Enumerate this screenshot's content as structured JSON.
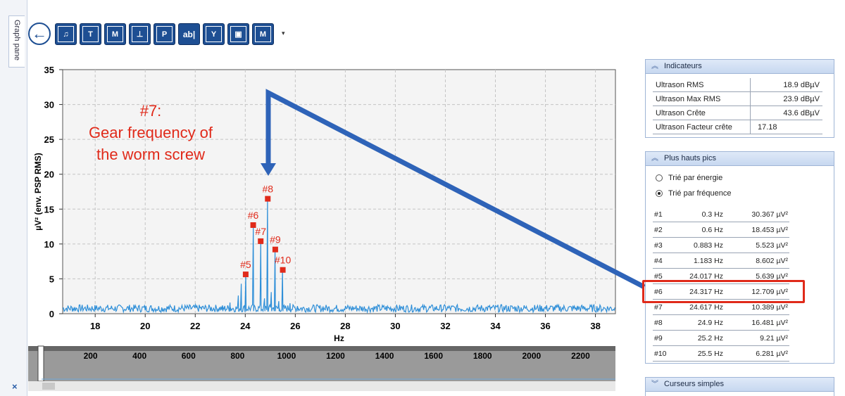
{
  "sidebar": {
    "graph_pane_tab": "Graph pane",
    "close_symbol": "×"
  },
  "toolbar": {
    "buttons": [
      {
        "name": "back-button",
        "label": "←"
      },
      {
        "name": "export-button",
        "label": "♫"
      },
      {
        "name": "time-cursor-button",
        "label": "T"
      },
      {
        "name": "marker-button",
        "label": "M"
      },
      {
        "name": "harmonic-button",
        "label": "⊥"
      },
      {
        "name": "peak-button",
        "label": "P"
      },
      {
        "name": "text-button",
        "label": "ab|"
      },
      {
        "name": "y-axis-button",
        "label": "Y"
      },
      {
        "name": "save-button",
        "label": "▣"
      },
      {
        "name": "delete-marker-button",
        "label": "M"
      }
    ],
    "dropdown_arrow": "▾"
  },
  "chart_data": {
    "type": "line",
    "ylabel": "µV² (env. PSP RMS)",
    "xlabel": "Hz",
    "xlim": [
      16.7,
      38.8
    ],
    "ylim": [
      0,
      35
    ],
    "xticks": [
      18,
      20,
      22,
      24,
      26,
      28,
      30,
      32,
      34,
      36,
      38
    ],
    "yticks": [
      0,
      5,
      10,
      15,
      20,
      25,
      30,
      35
    ],
    "grid": true,
    "line_color": "#2f8fd8",
    "noise_level": 0.9,
    "peaks": [
      {
        "label": "#5",
        "x": 24.017,
        "y": 5.639
      },
      {
        "label": "#6",
        "x": 24.317,
        "y": 12.709
      },
      {
        "label": "#7",
        "x": 24.617,
        "y": 10.4
      },
      {
        "label": "#8",
        "x": 24.9,
        "y": 16.481
      },
      {
        "label": "#9",
        "x": 25.2,
        "y": 9.21
      },
      {
        "label": "#10",
        "x": 25.5,
        "y": 6.281
      }
    ],
    "minor_peaks": [
      {
        "x": 23.4,
        "y": 1.6
      },
      {
        "x": 23.72,
        "y": 2.6
      },
      {
        "x": 23.85,
        "y": 4.3
      },
      {
        "x": 24.77,
        "y": 2.2
      },
      {
        "x": 25.05,
        "y": 3.1
      },
      {
        "x": 25.35,
        "y": 1.8
      },
      {
        "x": 25.8,
        "y": 1.5
      },
      {
        "x": 26.1,
        "y": 1.1
      },
      {
        "x": 23.1,
        "y": 1.2
      }
    ],
    "annotation_lines": [
      "#7:",
      "Gear frequency of",
      "the worm screw"
    ],
    "annotation_color": "#e02a1a",
    "overview": {
      "xlim": [
        0,
        2400
      ],
      "ticks": [
        200,
        400,
        600,
        800,
        1000,
        1200,
        1400,
        1600,
        1800,
        2000,
        2200
      ]
    }
  },
  "indicators": {
    "title": "Indicateurs",
    "rows": [
      {
        "label": "Ultrason RMS",
        "value": "18.9 dBµV"
      },
      {
        "label": "Ultrason Max RMS",
        "value": "23.9 dBµV"
      },
      {
        "label": "Ultrason Crête",
        "value": "43.6 dBµV"
      },
      {
        "label": "Ultrason Facteur crête",
        "value": "17.18"
      }
    ]
  },
  "peaks_panel": {
    "title": "Plus hauts pics",
    "sort_energy": "Trié par énergie",
    "sort_frequency": "Trié par fréquence",
    "rows": [
      {
        "id": "#1",
        "freq": "0.3 Hz",
        "amp": "30.367 µV²"
      },
      {
        "id": "#2",
        "freq": "0.6 Hz",
        "amp": "18.453 µV²"
      },
      {
        "id": "#3",
        "freq": "0.883 Hz",
        "amp": "5.523 µV²"
      },
      {
        "id": "#4",
        "freq": "1.183 Hz",
        "amp": "8.602 µV²"
      },
      {
        "id": "#5",
        "freq": "24.017 Hz",
        "amp": "5.639 µV²"
      },
      {
        "id": "#6",
        "freq": "24.317 Hz",
        "amp": "12.709 µV²"
      },
      {
        "id": "#7",
        "freq": "24.617 Hz",
        "amp": "10.389 µV²"
      },
      {
        "id": "#8",
        "freq": "24.9 Hz",
        "amp": "16.481 µV²"
      },
      {
        "id": "#9",
        "freq": "25.2 Hz",
        "amp": "9.21 µV²"
      },
      {
        "id": "#10",
        "freq": "25.5 Hz",
        "amp": "6.281 µV²"
      }
    ]
  },
  "cursors_panel": {
    "title": "Curseurs simples"
  },
  "colors": {
    "accent": "#1e4f93",
    "highlight": "#e02a1a",
    "arrow": "#2e63b8"
  }
}
